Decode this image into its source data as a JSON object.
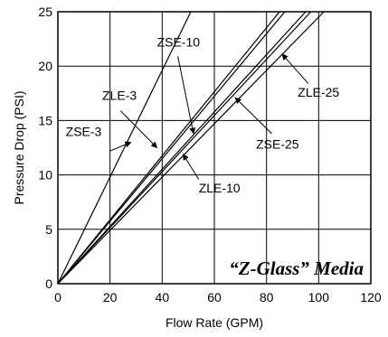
{
  "chart_data": {
    "type": "line",
    "title": "",
    "xlabel": "Flow Rate (GPM)",
    "ylabel": "Pressure Drop (PSI)",
    "xlim": [
      0,
      120
    ],
    "ylim": [
      0,
      25
    ],
    "xticks": [
      0,
      20,
      40,
      60,
      80,
      100,
      120
    ],
    "yticks": [
      0,
      5,
      10,
      15,
      20,
      25
    ],
    "grid": true,
    "annotation": "“Z-Glass” Media",
    "series": [
      {
        "name": "ZSE-3",
        "x": [
          0,
          51
        ],
        "y": [
          0,
          25
        ]
      },
      {
        "name": "ZLE-3",
        "x": [
          0,
          85
        ],
        "y": [
          0,
          25
        ]
      },
      {
        "name": "ZSE-10",
        "x": [
          0,
          87
        ],
        "y": [
          0,
          25
        ]
      },
      {
        "name": "ZSE-25",
        "x": [
          0,
          95
        ],
        "y": [
          0,
          25
        ]
      },
      {
        "name": "ZLE-10",
        "x": [
          0,
          97
        ],
        "y": [
          0,
          25
        ]
      },
      {
        "name": "ZLE-25",
        "x": [
          0,
          102
        ],
        "y": [
          0,
          25
        ]
      }
    ],
    "labels": [
      {
        "series": "ZSE-10",
        "text": "ZSE-10",
        "text_at": [
          38,
          21.8
        ],
        "arrow_from": [
          46,
          20.9
        ],
        "arrow_to": [
          52,
          13.8
        ]
      },
      {
        "series": "ZLE-3",
        "text": "ZLE-3",
        "text_at": [
          17,
          16.9
        ],
        "arrow_from": [
          24,
          15.9
        ],
        "arrow_to": [
          38,
          12.5
        ]
      },
      {
        "series": "ZSE-3",
        "text": "ZSE-3",
        "text_at": [
          3,
          13.6
        ],
        "arrow_from": [
          20,
          12.2
        ],
        "arrow_to": [
          28,
          13.0
        ]
      },
      {
        "series": "ZLE-10",
        "text": "ZLE-10",
        "text_at": [
          54,
          8.4
        ],
        "arrow_from": [
          54,
          9.6
        ],
        "arrow_to": [
          48,
          11.9
        ]
      },
      {
        "series": "ZSE-25",
        "text": "ZSE-25",
        "text_at": [
          76,
          12.4
        ],
        "arrow_from": [
          82,
          13.8
        ],
        "arrow_to": [
          68,
          17.1
        ]
      },
      {
        "series": "ZLE-25",
        "text": "ZLE-25",
        "text_at": [
          92,
          17.2
        ],
        "arrow_from": [
          96,
          18.4
        ],
        "arrow_to": [
          86,
          21.1
        ]
      }
    ]
  }
}
